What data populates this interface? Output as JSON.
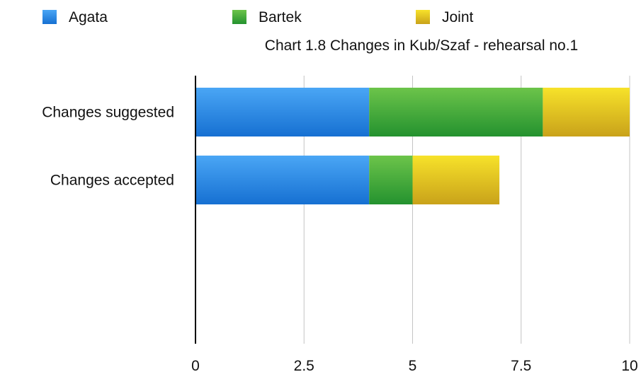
{
  "chart_data": {
    "type": "bar",
    "orientation": "horizontal",
    "stacked": true,
    "title": "Chart 1.8 Changes in Kub/Szaf - rehearsal no.1",
    "categories": [
      "Changes suggested",
      "Changes accepted"
    ],
    "series": [
      {
        "name": "Agata",
        "values": [
          4,
          4
        ],
        "color": "#2f86df"
      },
      {
        "name": "Bartek",
        "values": [
          4,
          1
        ],
        "color": "#3aa53a"
      },
      {
        "name": "Joint",
        "values": [
          2,
          2
        ],
        "color": "#e2c219"
      }
    ],
    "xlim": [
      0,
      10
    ],
    "xticks": [
      "0",
      "2.5",
      "5",
      "7.5",
      "10"
    ],
    "grid": true,
    "legend": "top-left"
  }
}
